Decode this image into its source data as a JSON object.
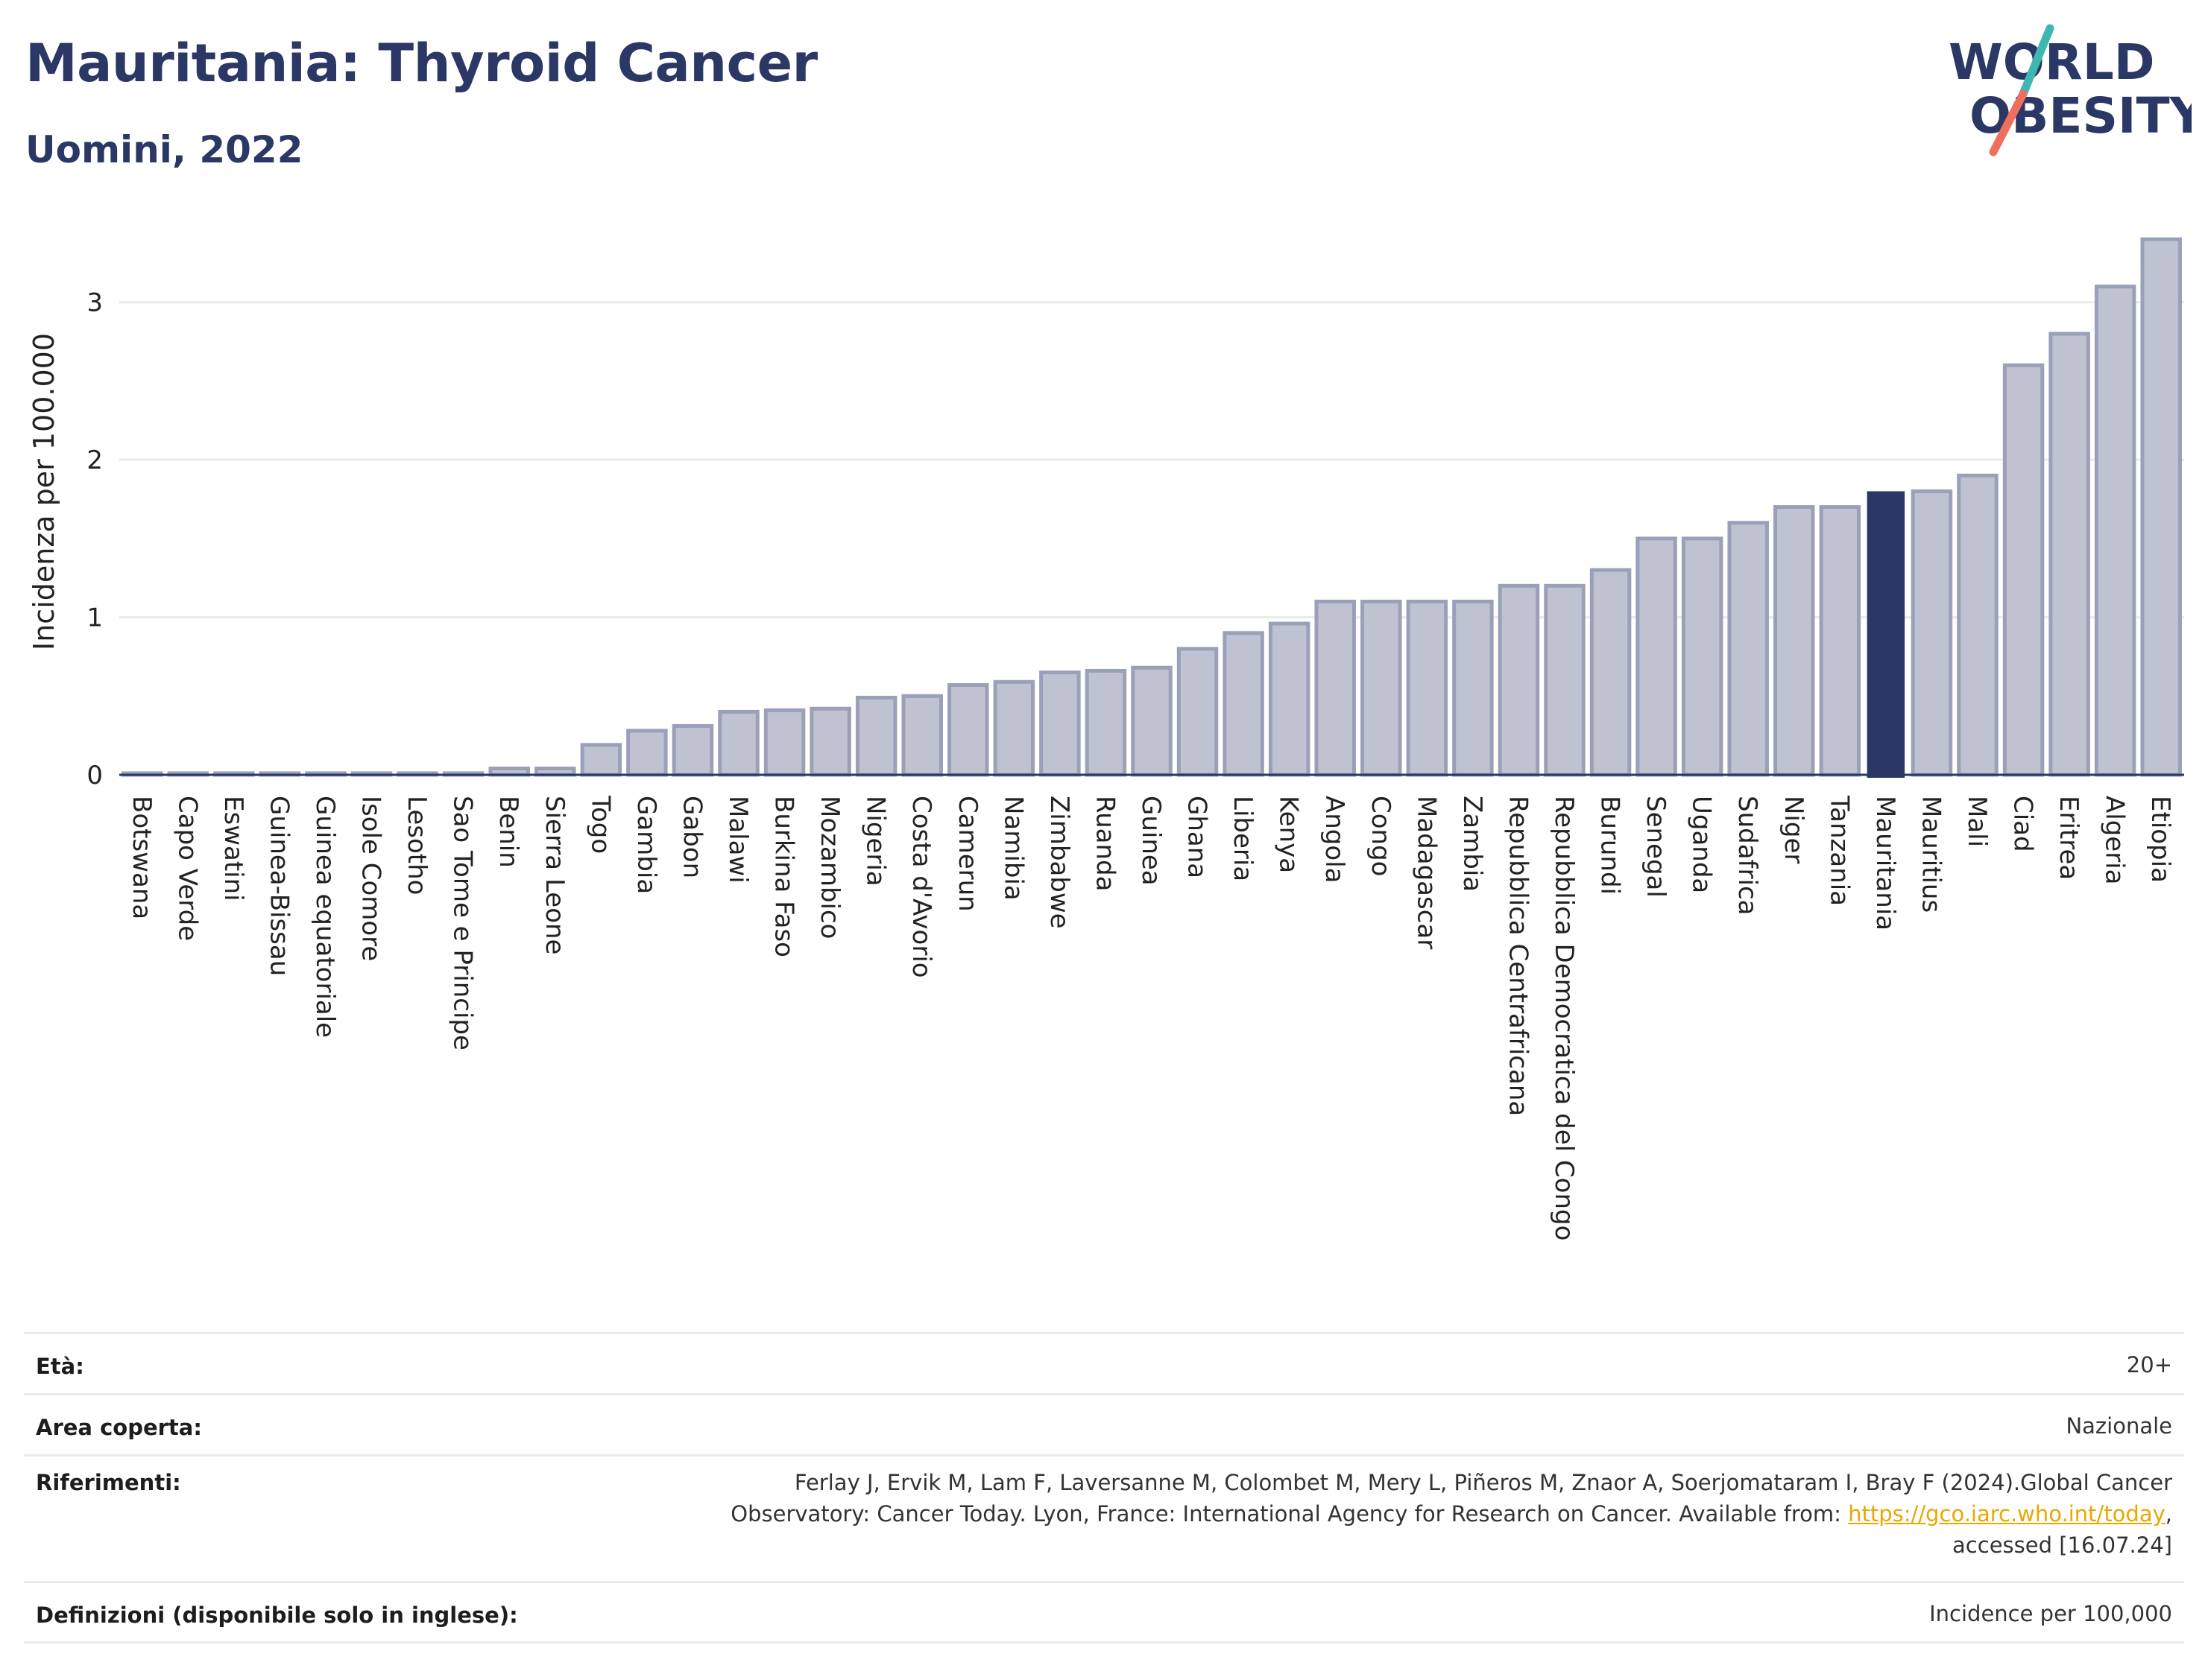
{
  "header": {
    "title": "Mauritania: Thyroid Cancer",
    "subtitle": "Uomini, 2022"
  },
  "logo": {
    "line1": "WORLD",
    "line2": "OBESITY",
    "colors": {
      "text": "#2b3764",
      "slash_teal": "#3fb7b1",
      "slash_coral": "#ef6f5e"
    }
  },
  "chart_data": {
    "type": "bar",
    "title": "",
    "xlabel": "",
    "ylabel": "Incidenza per 100.000",
    "ylim": [
      0,
      3.5
    ],
    "yticks": [
      0,
      1,
      2,
      3
    ],
    "grid": true,
    "legend": "none",
    "highlight": "Mauritania",
    "colors": {
      "bar": "#bfc3d1",
      "bar_border": "#9aa0b8",
      "highlight": "#2b3764",
      "grid": "#e8eaef",
      "axis": "#2b3764"
    },
    "categories": [
      "Botswana",
      "Capo Verde",
      "Eswatini",
      "Guinea-Bissau",
      "Guinea equatoriale",
      "Isole Comore",
      "Lesotho",
      "Sao Tome e Principe",
      "Benin",
      "Sierra Leone",
      "Togo",
      "Gambia",
      "Gabon",
      "Malawi",
      "Burkina Faso",
      "Mozambico",
      "Nigeria",
      "Costa d'Avorio",
      "Camerun",
      "Namibia",
      "Zimbabwe",
      "Ruanda",
      "Guinea",
      "Ghana",
      "Liberia",
      "Kenya",
      "Angola",
      "Congo",
      "Madagascar",
      "Zambia",
      "Repubblica Centrafricana",
      "Repubblica Democratica del Congo",
      "Burundi",
      "Senegal",
      "Uganda",
      "Sudafrica",
      "Niger",
      "Tanzania",
      "Mauritania",
      "Mauritius",
      "Mali",
      "Ciad",
      "Eritrea",
      "Algeria",
      "Etiopia"
    ],
    "values": [
      0.01,
      0.01,
      0.01,
      0.01,
      0.01,
      0.01,
      0.01,
      0.01,
      0.04,
      0.04,
      0.19,
      0.28,
      0.31,
      0.4,
      0.41,
      0.42,
      0.49,
      0.5,
      0.57,
      0.59,
      0.65,
      0.66,
      0.68,
      0.8,
      0.9,
      0.96,
      1.1,
      1.1,
      1.1,
      1.1,
      1.2,
      1.2,
      1.3,
      1.5,
      1.5,
      1.6,
      1.7,
      1.7,
      1.8,
      1.8,
      1.9,
      2.6,
      2.8,
      3.1,
      3.4
    ]
  },
  "meta": {
    "rows": [
      {
        "label": "Età:",
        "value": "20+"
      },
      {
        "label": "Area coperta:",
        "value": "Nazionale"
      },
      {
        "label": "Riferimenti:",
        "value_line1": "Ferlay J, Ervik M, Lam F, Laversanne M, Colombet M, Mery L, Piñeros M, Znaor A, Soerjomataram I, Bray F (2024).Global Cancer",
        "value_line2": "Observatory: Cancer Today. Lyon, France: International Agency for Research on Cancer. Available from: ",
        "link": "https://gco.iarc.who.int/today",
        "value_line2_end": ",",
        "value_line3": "accessed [16.07.24]"
      },
      {
        "label": "Definizioni (disponibile solo in inglese):",
        "value": "Incidence per 100,000"
      }
    ]
  }
}
